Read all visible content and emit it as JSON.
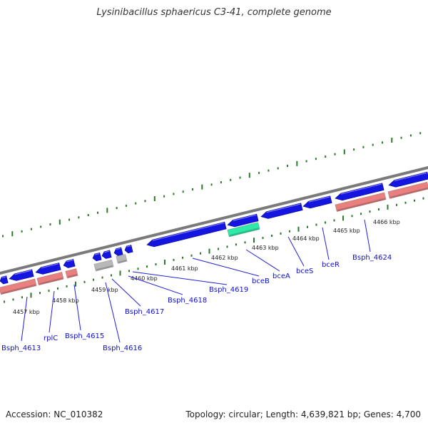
{
  "title": "Lysinibacillus sphaericus C3-41, complete genome",
  "footer": {
    "accession": "Accession: NC_010382",
    "stats": "Topology: circular; Length: 4,639,821 bp; Genes: 4,700"
  },
  "ruler_labels": [
    "4457 kbp",
    "4458 kbp",
    "4459 kbp",
    "4460 kbp",
    "4461 kbp",
    "4462 kbp",
    "4463 kbp",
    "4464 kbp",
    "4465 kbp",
    "4466 kbp"
  ],
  "gene_labels": [
    "Bsph_4613",
    "rplC",
    "Bsph_4615",
    "Bsph_4616",
    "Bsph_4617",
    "Bsph_4618",
    "Bsph_4619",
    "bceB",
    "bceA",
    "bceS",
    "bceR",
    "Bsph_4624"
  ],
  "colors": {
    "forward_gene": "#1515e0",
    "rna_gene": "#e88080",
    "pseudo_gene": "#b8b8b8",
    "highlight_gene": "#30e8a8",
    "backbone": "#7a7a7a",
    "tick": "#2a7a2a",
    "label": "#1010cc",
    "leader": "#2020dd"
  }
}
